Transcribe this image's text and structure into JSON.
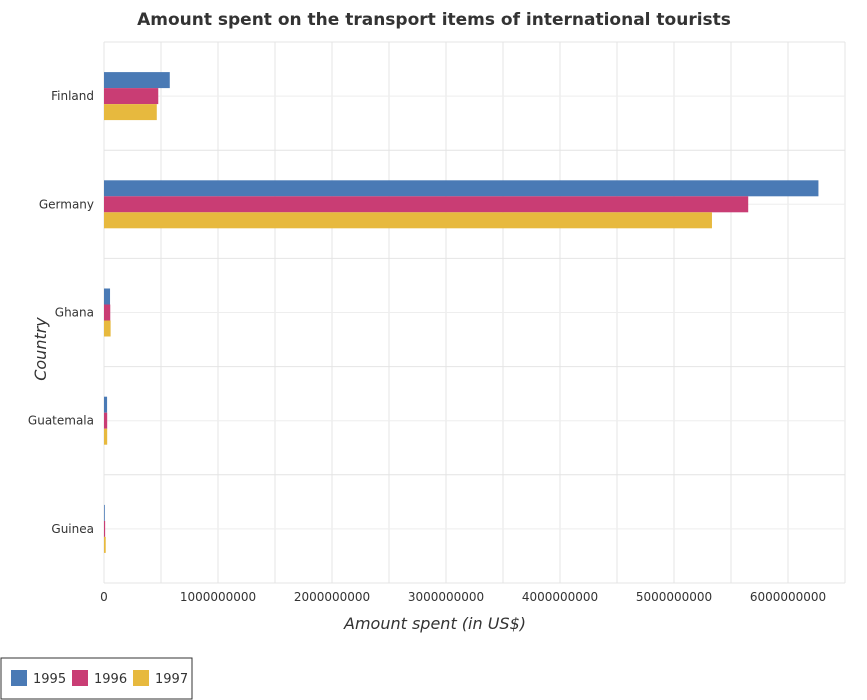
{
  "chart_data": {
    "type": "bar",
    "orientation": "horizontal",
    "title": "Amount spent on the transport items of international tourists",
    "xlabel": "Amount spent (in US$)",
    "ylabel": "Country",
    "categories": [
      "Finland",
      "Germany",
      "Ghana",
      "Guatemala",
      "Guinea"
    ],
    "series": [
      {
        "name": "1995",
        "color": "#4a7ab5",
        "values": [
          577000000,
          6267000000,
          53000000,
          27000000,
          7000000
        ]
      },
      {
        "name": "1996",
        "color": "#c93d74",
        "values": [
          476000000,
          5651000000,
          55000000,
          28000000,
          10000000
        ]
      },
      {
        "name": "1997",
        "color": "#e7b93e",
        "values": [
          463000000,
          5333000000,
          58000000,
          28000000,
          15000000
        ]
      }
    ],
    "xlim": [
      0,
      6500000000
    ],
    "xticks": [
      0,
      1000000000,
      2000000000,
      3000000000,
      4000000000,
      5000000000,
      6000000000
    ],
    "xtick_labels": [
      "0",
      "1000000000",
      "2000000000",
      "3000000000",
      "4000000000",
      "5000000000",
      "6000000000"
    ],
    "grid": true,
    "legend_position": "bottom-left"
  }
}
